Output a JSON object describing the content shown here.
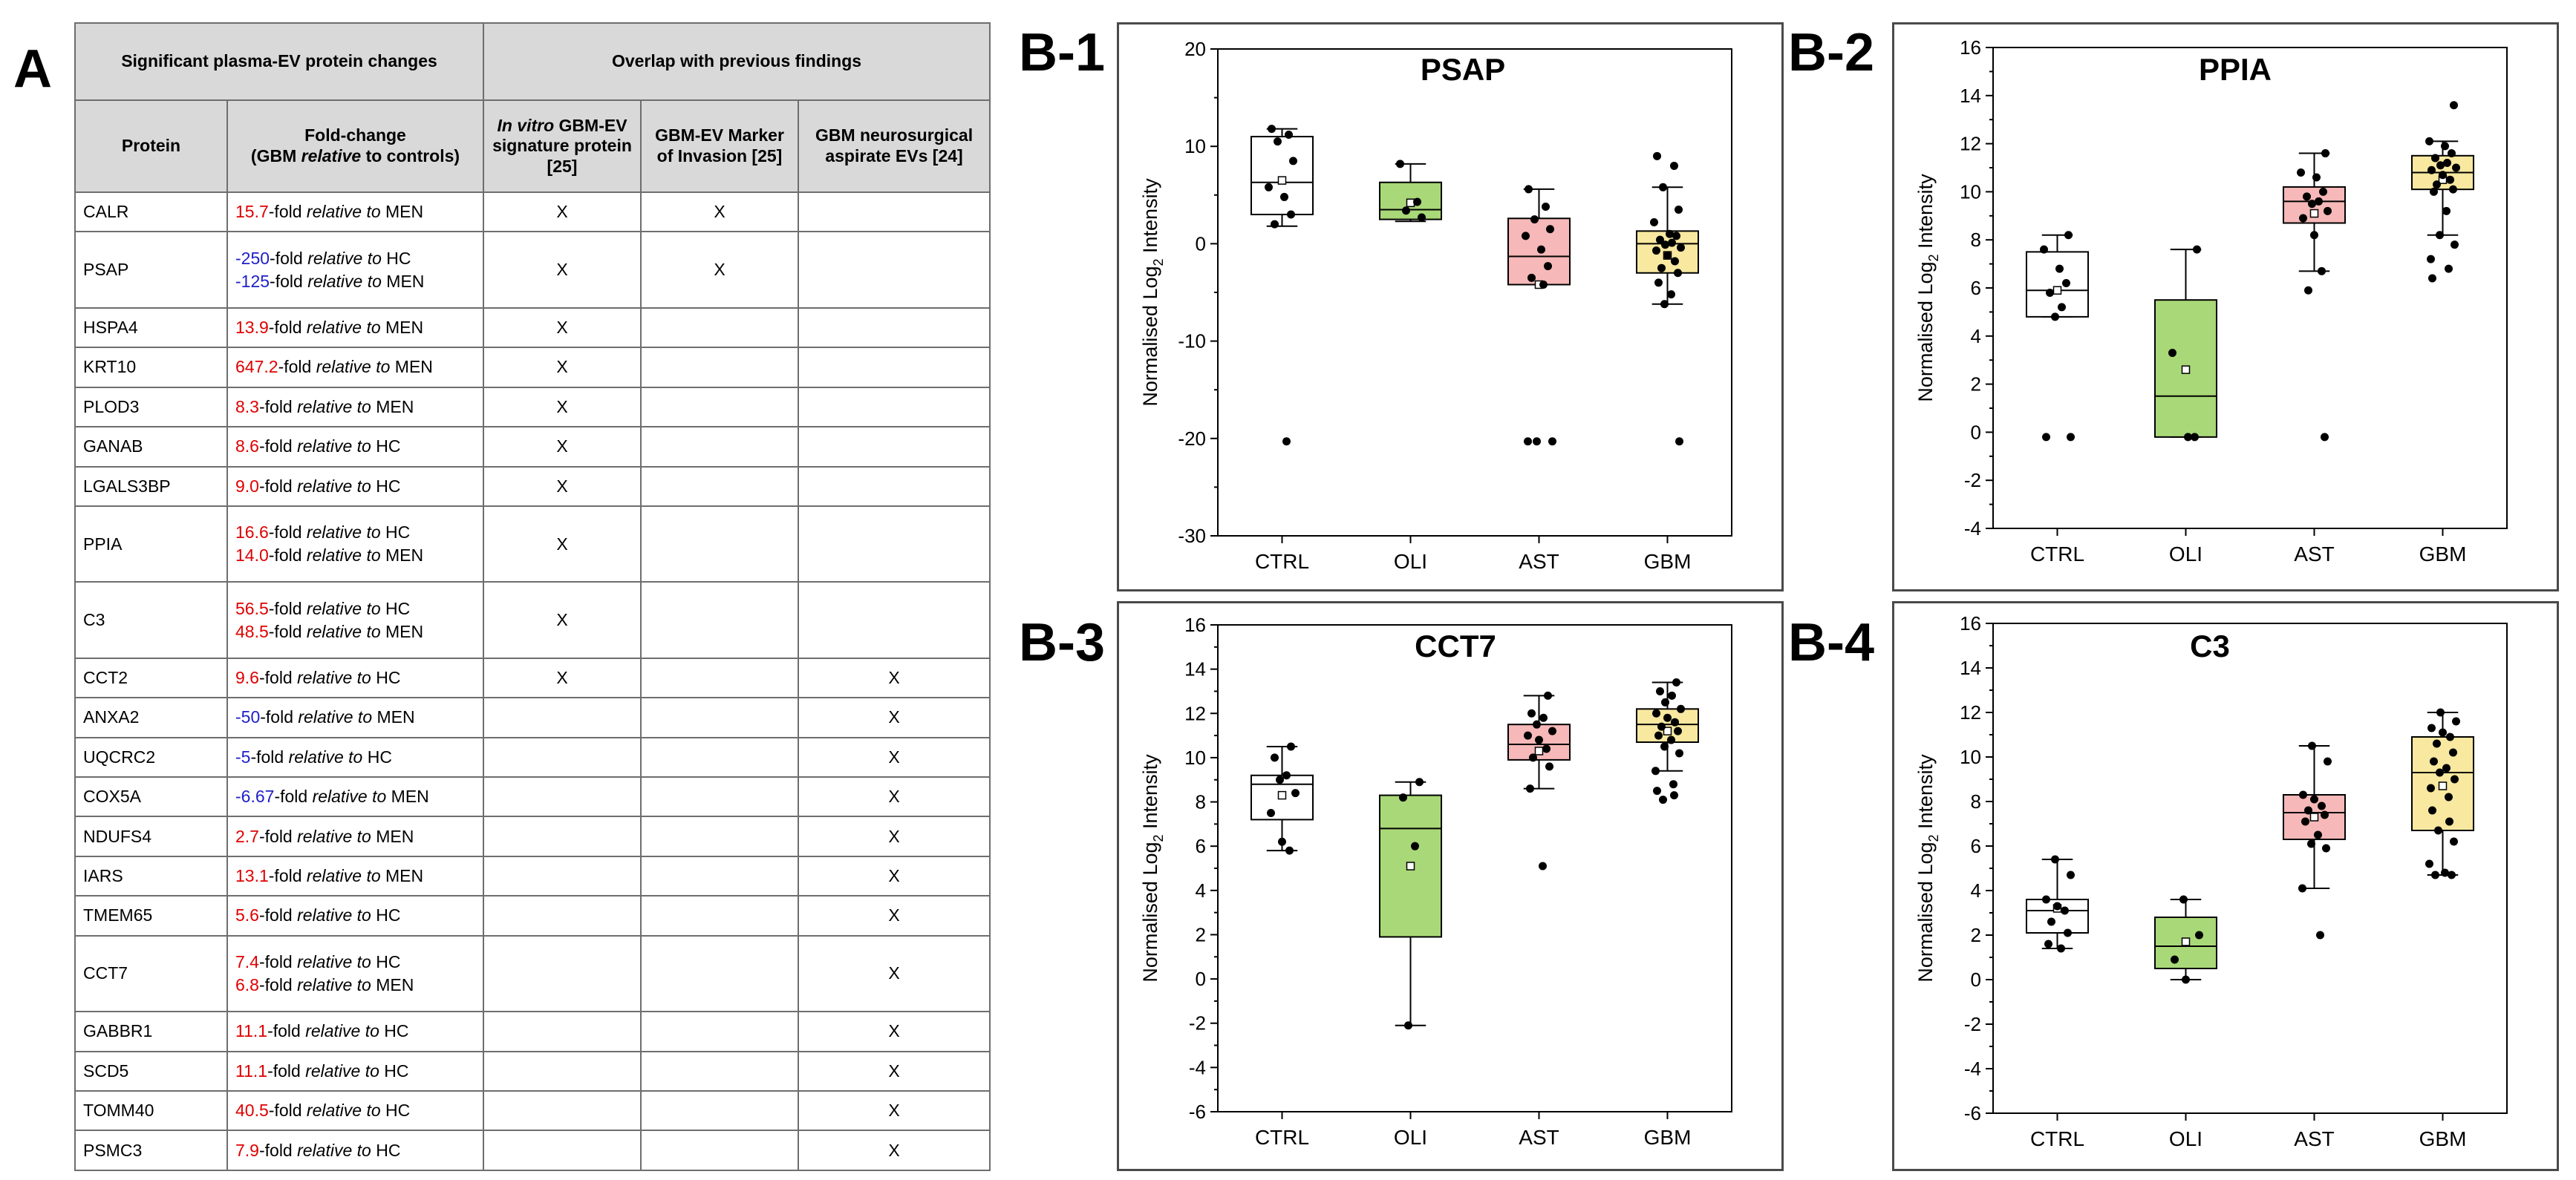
{
  "panel_labels": {
    "a": "A",
    "b1": "B-1",
    "b2": "B-2",
    "b3": "B-3",
    "b4": "B-4"
  },
  "table": {
    "header_group1": "Significant plasma-EV protein changes",
    "header_group2": "Overlap with previous findings",
    "col_protein": "Protein",
    "col_fold_line1": "Fold-change",
    "col_fold_line2a": "(GBM ",
    "col_fold_line2b": "relative",
    "col_fold_line2c": " to controls)",
    "col_invitro_a": "In vitro",
    "col_invitro_b": " GBM-EV signature protein [25]",
    "col_marker": "GBM-EV Marker of Invasion [25]",
    "col_aspirate": "GBM neurosurgical aspirate EVs [24]",
    "mark": "X",
    "fold_mid": "-fold ",
    "fold_rel": "relative to",
    "rows": [
      {
        "protein": "CALR",
        "fc": [
          {
            "num": "15.7",
            "dir": "up",
            "tail": " MEN"
          }
        ],
        "invitro": "X",
        "marker": "X",
        "aspirate": ""
      },
      {
        "protein": "PSAP",
        "fc": [
          {
            "num": "-250",
            "dir": "down",
            "tail": " HC"
          },
          {
            "num": "-125",
            "dir": "down",
            "tail": " MEN"
          }
        ],
        "invitro": "X",
        "marker": "X",
        "aspirate": ""
      },
      {
        "protein": "HSPA4",
        "fc": [
          {
            "num": "13.9",
            "dir": "up",
            "tail": " MEN"
          }
        ],
        "invitro": "X",
        "marker": "",
        "aspirate": ""
      },
      {
        "protein": "KRT10",
        "fc": [
          {
            "num": "647.2",
            "dir": "up",
            "tail": " MEN"
          }
        ],
        "invitro": "X",
        "marker": "",
        "aspirate": ""
      },
      {
        "protein": "PLOD3",
        "fc": [
          {
            "num": "8.3",
            "dir": "up",
            "tail": " MEN"
          }
        ],
        "invitro": "X",
        "marker": "",
        "aspirate": ""
      },
      {
        "protein": "GANAB",
        "fc": [
          {
            "num": "8.6",
            "dir": "up",
            "tail": " HC"
          }
        ],
        "invitro": "X",
        "marker": "",
        "aspirate": ""
      },
      {
        "protein": "LGALS3BP",
        "fc": [
          {
            "num": "9.0",
            "dir": "up",
            "tail": " HC"
          }
        ],
        "invitro": "X",
        "marker": "",
        "aspirate": ""
      },
      {
        "protein": "PPIA",
        "fc": [
          {
            "num": "16.6",
            "dir": "up",
            "tail": " HC"
          },
          {
            "num": "14.0",
            "dir": "up",
            "tail": " MEN"
          }
        ],
        "invitro": "X",
        "marker": "",
        "aspirate": ""
      },
      {
        "protein": "C3",
        "fc": [
          {
            "num": "56.5",
            "dir": "up",
            "tail": " HC"
          },
          {
            "num": "48.5",
            "dir": "up",
            "tail": " MEN"
          }
        ],
        "invitro": "X",
        "marker": "",
        "aspirate": ""
      },
      {
        "protein": "CCT2",
        "fc": [
          {
            "num": "9.6",
            "dir": "up",
            "tail": " HC"
          }
        ],
        "invitro": "X",
        "marker": "",
        "aspirate": "X"
      },
      {
        "protein": "ANXA2",
        "fc": [
          {
            "num": "-50",
            "dir": "down",
            "tail": " MEN"
          }
        ],
        "invitro": "",
        "marker": "",
        "aspirate": "X"
      },
      {
        "protein": "UQCRC2",
        "fc": [
          {
            "num": "-5",
            "dir": "down",
            "tail": " HC"
          }
        ],
        "invitro": "",
        "marker": "",
        "aspirate": "X"
      },
      {
        "protein": "COX5A",
        "fc": [
          {
            "num": "-6.67",
            "dir": "down",
            "tail": " MEN"
          }
        ],
        "invitro": "",
        "marker": "",
        "aspirate": "X"
      },
      {
        "protein": "NDUFS4",
        "fc": [
          {
            "num": "2.7",
            "dir": "up",
            "tail": " MEN"
          }
        ],
        "invitro": "",
        "marker": "",
        "aspirate": "X"
      },
      {
        "protein": "IARS",
        "fc": [
          {
            "num": "13.1",
            "dir": "up",
            "tail": " MEN"
          }
        ],
        "invitro": "",
        "marker": "",
        "aspirate": "X"
      },
      {
        "protein": "TMEM65",
        "fc": [
          {
            "num": "5.6",
            "dir": "up",
            "tail": " HC"
          }
        ],
        "invitro": "",
        "marker": "",
        "aspirate": "X"
      },
      {
        "protein": "CCT7",
        "fc": [
          {
            "num": "7.4",
            "dir": "up",
            "tail": " HC"
          },
          {
            "num": "6.8",
            "dir": "up",
            "tail": " MEN"
          }
        ],
        "invitro": "",
        "marker": "",
        "aspirate": "X"
      },
      {
        "protein": "GABBR1",
        "fc": [
          {
            "num": "11.1",
            "dir": "up",
            "tail": " HC"
          }
        ],
        "invitro": "",
        "marker": "",
        "aspirate": "X"
      },
      {
        "protein": "SCD5",
        "fc": [
          {
            "num": "11.1",
            "dir": "up",
            "tail": " HC"
          }
        ],
        "invitro": "",
        "marker": "",
        "aspirate": "X"
      },
      {
        "protein": "TOMM40",
        "fc": [
          {
            "num": "40.5",
            "dir": "up",
            "tail": " HC"
          }
        ],
        "invitro": "",
        "marker": "",
        "aspirate": "X"
      },
      {
        "protein": "PSMC3",
        "fc": [
          {
            "num": "7.9",
            "dir": "up",
            "tail": " HC"
          }
        ],
        "invitro": "",
        "marker": "",
        "aspirate": "X"
      }
    ]
  },
  "colors": {
    "up": "#e00000",
    "down": "#2020c8",
    "CTRL": "#ffffff",
    "OLI": "#a9d878",
    "AST": "#f6b8b8",
    "GBM": "#f8e8a0"
  },
  "ylabel_pre": "Normalised Log",
  "ylabel_sub": "2",
  "ylabel_post": " Intensity",
  "chart_data": [
    {
      "id": "b1",
      "type": "box",
      "title": "PSAP",
      "categories": [
        "CTRL",
        "OLI",
        "AST",
        "GBM"
      ],
      "ylim": [
        -30,
        20
      ],
      "yticks": [
        -30,
        -20,
        -10,
        0,
        10,
        20
      ],
      "boxes": [
        {
          "q1": 3,
          "median": 6.3,
          "q3": 11,
          "wlo": 1.8,
          "whi": 11.8,
          "mean": 6.5
        },
        {
          "q1": 2.5,
          "median": 3.5,
          "q3": 6.3,
          "wlo": 2.3,
          "whi": 8.2,
          "mean": 4.2
        },
        {
          "q1": -4.2,
          "median": -1.3,
          "q3": 2.6,
          "wlo": -4.2,
          "whi": 5.6,
          "mean": -4.2
        },
        {
          "q1": -3,
          "median": 0,
          "q3": 1.3,
          "wlo": -6.2,
          "whi": 5.8,
          "mean": -1.2
        }
      ],
      "points": [
        [
          11.8,
          11.2,
          10.5,
          8.5,
          5.8,
          4.8,
          3.0,
          2.0,
          -20.3
        ],
        [
          8.2,
          4.3,
          3.4,
          2.7
        ],
        [
          5.6,
          3.8,
          2.5,
          1.5,
          0.8,
          -0.6,
          -2.3,
          -3.5,
          -4.2,
          -20.3,
          -20.3,
          -20.3
        ],
        [
          9.0,
          8.0,
          5.8,
          3.5,
          2.2,
          1.0,
          0.8,
          0.4,
          0.1,
          -0.1,
          -0.4,
          -0.7,
          -1.2,
          -1.8,
          -2.5,
          -3.0,
          -4.0,
          -5.2,
          -6.2,
          -20.3
        ]
      ]
    },
    {
      "id": "b2",
      "type": "box",
      "title": "PPIA",
      "categories": [
        "CTRL",
        "OLI",
        "AST",
        "GBM"
      ],
      "ylim": [
        -4,
        16
      ],
      "yticks": [
        -4,
        -2,
        0,
        2,
        4,
        6,
        8,
        10,
        12,
        14,
        16
      ],
      "boxes": [
        {
          "q1": 4.8,
          "median": 5.9,
          "q3": 7.5,
          "wlo": 4.8,
          "whi": 8.2,
          "mean": 5.9
        },
        {
          "q1": -0.2,
          "median": 1.5,
          "q3": 5.5,
          "wlo": -0.2,
          "whi": 7.6,
          "mean": 2.6
        },
        {
          "q1": 8.7,
          "median": 9.6,
          "q3": 10.2,
          "wlo": 6.7,
          "whi": 11.6,
          "mean": 9.1
        },
        {
          "q1": 10.1,
          "median": 10.8,
          "q3": 11.5,
          "wlo": 8.2,
          "whi": 12.1,
          "mean": 10.5
        }
      ],
      "points": [
        [
          8.2,
          7.6,
          6.8,
          6.2,
          5.8,
          5.2,
          4.8,
          -0.2,
          -0.2
        ],
        [
          7.6,
          3.3,
          -0.2,
          -0.2
        ],
        [
          11.6,
          10.8,
          10.6,
          10.0,
          9.8,
          9.6,
          9.5,
          9.2,
          8.9,
          8.2,
          6.7,
          5.9,
          -0.2
        ],
        [
          13.6,
          12.1,
          11.9,
          11.6,
          11.4,
          11.2,
          11.1,
          11.0,
          10.9,
          10.7,
          10.5,
          10.3,
          10.1,
          10.0,
          9.2,
          8.2,
          7.8,
          7.2,
          6.8,
          6.4
        ]
      ]
    },
    {
      "id": "b3",
      "type": "box",
      "title": "CCT7",
      "categories": [
        "CTRL",
        "OLI",
        "AST",
        "GBM"
      ],
      "ylim": [
        -6,
        16
      ],
      "yticks": [
        -6,
        -4,
        -2,
        0,
        2,
        4,
        6,
        8,
        10,
        12,
        14,
        16
      ],
      "boxes": [
        {
          "q1": 7.2,
          "median": 8.8,
          "q3": 9.2,
          "wlo": 5.8,
          "whi": 10.5,
          "mean": 8.3
        },
        {
          "q1": 1.9,
          "median": 6.8,
          "q3": 8.3,
          "wlo": -2.1,
          "whi": 8.9,
          "mean": 5.1
        },
        {
          "q1": 9.9,
          "median": 10.6,
          "q3": 11.5,
          "wlo": 8.6,
          "whi": 12.8,
          "mean": 10.3
        },
        {
          "q1": 10.7,
          "median": 11.5,
          "q3": 12.2,
          "wlo": 9.4,
          "whi": 13.4,
          "mean": 11.2
        }
      ],
      "points": [
        [
          10.5,
          10.0,
          9.2,
          9.0,
          8.4,
          7.5,
          6.2,
          5.8
        ],
        [
          8.9,
          8.2,
          6.0,
          -2.1
        ],
        [
          12.8,
          12.0,
          11.8,
          11.5,
          11.2,
          11.0,
          10.8,
          10.4,
          10.0,
          9.6,
          8.6,
          5.1
        ],
        [
          13.4,
          13.0,
          12.8,
          12.5,
          12.2,
          12.0,
          11.8,
          11.6,
          11.4,
          11.2,
          11.0,
          10.8,
          10.5,
          10.2,
          9.4,
          8.8,
          8.5,
          8.3,
          8.1
        ]
      ]
    },
    {
      "id": "b4",
      "type": "box",
      "title": "C3",
      "categories": [
        "CTRL",
        "OLI",
        "AST",
        "GBM"
      ],
      "ylim": [
        -6,
        16
      ],
      "yticks": [
        -6,
        -4,
        -2,
        0,
        2,
        4,
        6,
        8,
        10,
        12,
        14,
        16
      ],
      "boxes": [
        {
          "q1": 2.1,
          "median": 3.1,
          "q3": 3.6,
          "wlo": 1.4,
          "whi": 5.4,
          "mean": 3.2
        },
        {
          "q1": 0.5,
          "median": 1.5,
          "q3": 2.8,
          "wlo": 0,
          "whi": 3.6,
          "mean": 1.7
        },
        {
          "q1": 6.3,
          "median": 7.5,
          "q3": 8.3,
          "wlo": 4.1,
          "whi": 10.5,
          "mean": 7.3
        },
        {
          "q1": 6.7,
          "median": 9.3,
          "q3": 10.9,
          "wlo": 4.7,
          "whi": 12.0,
          "mean": 8.7
        }
      ],
      "points": [
        [
          5.4,
          4.7,
          3.6,
          3.3,
          3.1,
          2.6,
          2.1,
          1.6,
          1.4
        ],
        [
          3.6,
          2.0,
          0.9,
          0.0
        ],
        [
          10.5,
          9.8,
          8.3,
          8.1,
          7.8,
          7.6,
          7.4,
          7.1,
          6.5,
          6.1,
          5.9,
          4.1,
          2.0
        ],
        [
          12.0,
          11.6,
          11.3,
          11.1,
          10.9,
          10.6,
          10.2,
          9.8,
          9.5,
          9.3,
          9.0,
          8.6,
          8.2,
          7.6,
          7.1,
          6.7,
          6.2,
          5.2,
          4.8,
          4.7,
          4.7
        ]
      ]
    }
  ]
}
